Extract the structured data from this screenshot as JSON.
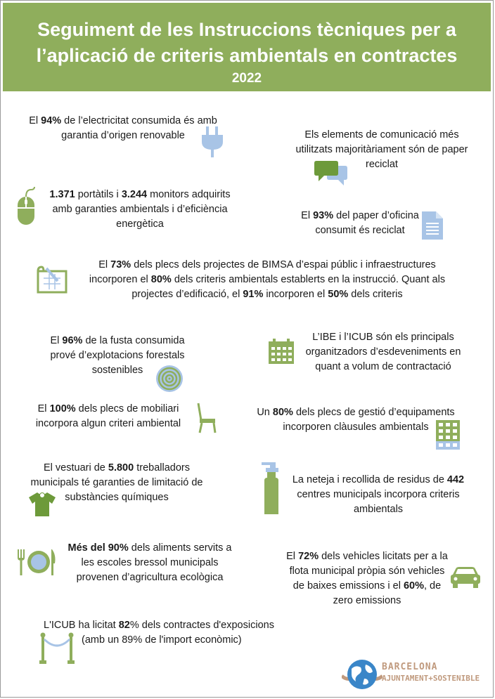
{
  "header": {
    "title_line1": "Seguiment de les Instruccions tècniques per a",
    "title_line2": "l’aplicació de criteris ambientals en contractes",
    "year": "2022"
  },
  "items": {
    "electricity": {
      "l1a": "El ",
      "l1b": "94%",
      "l1c": " de l’electricitat consumida és amb",
      "l2": "garantia d’origen renovable"
    },
    "communication": {
      "l1": "Els elements de comunicació més",
      "l2": "utilitzats majoritàriament són de paper",
      "l3": "reciclat"
    },
    "laptops": {
      "l1a": "1.371",
      "l1b": " portàtils i ",
      "l1c": "3.244",
      "l1d": " monitors adquirits",
      "l2": "amb garanties ambientals i d’eficiència",
      "l3": "energètica"
    },
    "paper": {
      "l1a": "El ",
      "l1b": "93%",
      "l1c": " del paper d’oficina",
      "l2": "consumit és reciclat"
    },
    "bimsa": {
      "l1a": "El ",
      "l1b": "73%",
      "l1c": " dels plecs dels projectes de BIMSA d’espai públic i infraestructures",
      "l2a": "incorporen el ",
      "l2b": "80%",
      "l2c": " dels criteris ambientals establerts en la instrucció. Quant als",
      "l3a": "projectes d’edificació, el ",
      "l3b": "91%",
      "l3c": " incorporen el ",
      "l3d": "50%",
      "l3e": " dels criteris"
    },
    "wood": {
      "l1a": "El ",
      "l1b": "96%",
      "l1c": " de la fusta consumida",
      "l2": "prové d’explotacions forestals",
      "l3": "sostenibles"
    },
    "events": {
      "l1": "L’IBE i l’ICUB són els principals",
      "l2": "organitzadors d’esdeveniments en",
      "l3": "quant a volum de contractació"
    },
    "furniture": {
      "l1a": "El ",
      "l1b": "100%",
      "l1c": " dels plecs de mobiliari",
      "l2": "incorpora algun criteri ambiental"
    },
    "facilities": {
      "l1a": "Un ",
      "l1b": "80%",
      "l1c": " dels plecs de gestió d’equipaments",
      "l2": "incorporen clàusules ambientals"
    },
    "clothing": {
      "l1a": "El vestuari de ",
      "l1b": "5.800",
      "l1c": " treballadors",
      "l2": "municipals té garanties de limitació de",
      "l3": "substàncies químiques"
    },
    "cleaning": {
      "l1a": "La neteja i recollida de residus de ",
      "l1b": "442",
      "l2": "centres municipals incorpora criteris",
      "l3": "ambientals"
    },
    "food": {
      "l1a": "Més del 90%",
      "l1b": " dels aliments servits a",
      "l2": "les escoles bressol municipals",
      "l3": "provenen d’agricultura ecològica"
    },
    "vehicles": {
      "l1a": "El ",
      "l1b": "72%",
      "l1c": " dels vehicles licitats per a la",
      "l2": "flota municipal pròpia són vehicles",
      "l3a": "de baixes emissions i el ",
      "l3b": "60%",
      "l3c": ", de",
      "l4": "zero emissions"
    },
    "exhibitions": {
      "l1a": "L'ICUB ha licitat ",
      "l1b": "82",
      "l1c": "% dels contractes d'exposicions",
      "l2": "(amb un 89% de l'import econòmic)"
    }
  },
  "logo": {
    "line1": "BARCELONA",
    "line2": "AJUNTAMENT+SOSTENIBLE"
  },
  "icons": {
    "plug": "plug-icon",
    "chat": "chat-bubbles-icon",
    "mouse": "mouse-icon",
    "document": "document-icon",
    "blueprint": "blueprint-icon",
    "tree_rings": "tree-rings-icon",
    "calendar": "calendar-icon",
    "chair": "chair-icon",
    "building": "building-icon",
    "tshirt": "tshirt-icon",
    "spray": "spray-bottle-icon",
    "plate": "plate-cutlery-icon",
    "car": "car-icon",
    "rope_barrier": "rope-barrier-icon",
    "globe": "globe-logo-icon"
  },
  "colors": {
    "green": "#8fae5c",
    "blue": "#a8c4e6",
    "logo_blue": "#3a86c8",
    "logo_tan": "#c09a7e"
  }
}
